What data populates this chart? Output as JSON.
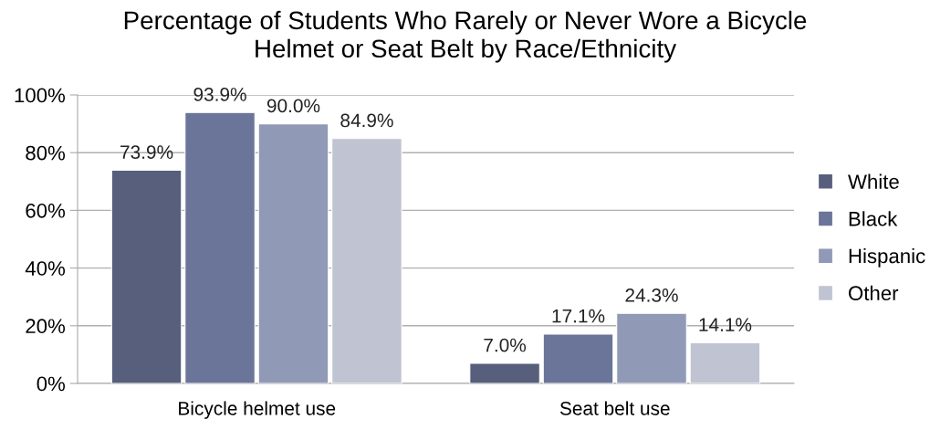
{
  "chart_data": {
    "type": "bar",
    "title": "Percentage of Students Who Rarely or Never Wore a Bicycle\nHelmet or Seat Belt by Race/Ethnicity",
    "categories": [
      "Bicycle helmet use",
      "Seat belt use"
    ],
    "series": [
      {
        "name": "White",
        "color": "#575f7c",
        "values": [
          73.9,
          7.0
        ],
        "value_labels": [
          "73.9%",
          "7.0%"
        ]
      },
      {
        "name": "Black",
        "color": "#6b7599",
        "values": [
          93.9,
          17.1
        ],
        "value_labels": [
          "93.9%",
          "17.1%"
        ]
      },
      {
        "name": "Hispanic",
        "color": "#9099b5",
        "values": [
          90.0,
          24.3
        ],
        "value_labels": [
          "90.0%",
          "24.3%"
        ]
      },
      {
        "name": "Other",
        "color": "#c0c3d2",
        "values": [
          84.9,
          14.1
        ],
        "value_labels": [
          "84.9%",
          "14.1%"
        ]
      }
    ],
    "ylim": [
      0,
      100
    ],
    "yticks": [
      {
        "value": 0,
        "label": "0%"
      },
      {
        "value": 20,
        "label": "20%"
      },
      {
        "value": 40,
        "label": "40%"
      },
      {
        "value": 60,
        "label": "60%"
      },
      {
        "value": 80,
        "label": "80%"
      },
      {
        "value": 100,
        "label": "100%"
      }
    ],
    "grid": "y",
    "legend": "right"
  }
}
